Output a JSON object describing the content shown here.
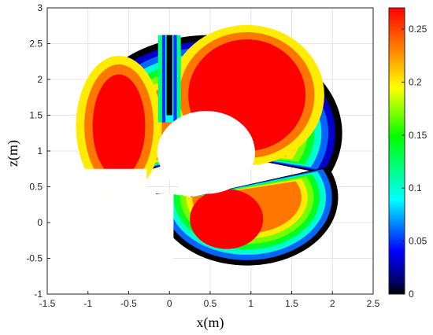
{
  "chart_data": {
    "type": "heatmap",
    "title": "",
    "xlabel": "x(m)",
    "ylabel": "z(m)",
    "xlim": [
      -1.5,
      2.5
    ],
    "ylim": [
      -1,
      3
    ],
    "xticks": [
      "-1.5",
      "-1",
      "-0.5",
      "0",
      "0.5",
      "1",
      "1.5",
      "2",
      "2.5"
    ],
    "yticks": [
      "-1",
      "-0.5",
      "0",
      "0.5",
      "1",
      "1.5",
      "2",
      "2.5",
      "3"
    ],
    "grid": true,
    "colorbar": {
      "range": [
        0,
        0.27
      ],
      "ticks": [
        "0",
        "0.05",
        "0.1",
        "0.15",
        "0.2",
        "0.25"
      ],
      "colormap": "jet"
    },
    "regions": [
      {
        "name": "upper-left-lobe",
        "description_values": "peak about 0.27 centered near x=-0.6, z=1.3",
        "peak": [
          -0.6,
          1.3
        ]
      },
      {
        "name": "upper-right-lobe",
        "peak": [
          0.9,
          1.8
        ]
      },
      {
        "name": "lower-right-lobe",
        "peak": [
          0.7,
          0.05
        ]
      }
    ],
    "contour_levels": [
      0.27,
      0.24,
      0.2,
      0.17,
      0.12,
      0.09,
      0.05,
      0.02
    ]
  }
}
